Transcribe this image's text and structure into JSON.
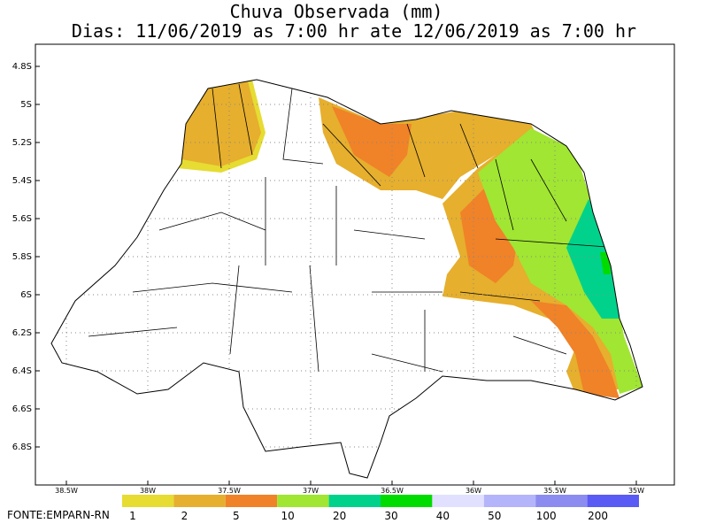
{
  "title": "Chuva Observada (mm)",
  "subtitle": "Dias: 11/06/2019 as 7:00 hr ate 12/06/2019 as 7:00 hr",
  "lat_labels": [
    "4.8S",
    "5S",
    "5.2S",
    "5.4S",
    "5.6S",
    "5.8S",
    "6S",
    "6.2S",
    "6.4S",
    "6.6S",
    "6.8S"
  ],
  "lon_labels": [
    "38.5W",
    "38W",
    "37.5W",
    "37W",
    "36.5W",
    "36W",
    "35.5W",
    "35W"
  ],
  "legend": {
    "labels": [
      1,
      2,
      5,
      10,
      20,
      30,
      40,
      50,
      100,
      200
    ],
    "colors": [
      "#e6dc32",
      "#e6af2d",
      "#f08228",
      "#a0e632",
      "#00d28c",
      "#00dc00",
      "#e1e1ff",
      "#b4b4fa",
      "#8c8cf0",
      "#5a5af5"
    ]
  },
  "source": "FONTE:EMPARN-RN"
}
